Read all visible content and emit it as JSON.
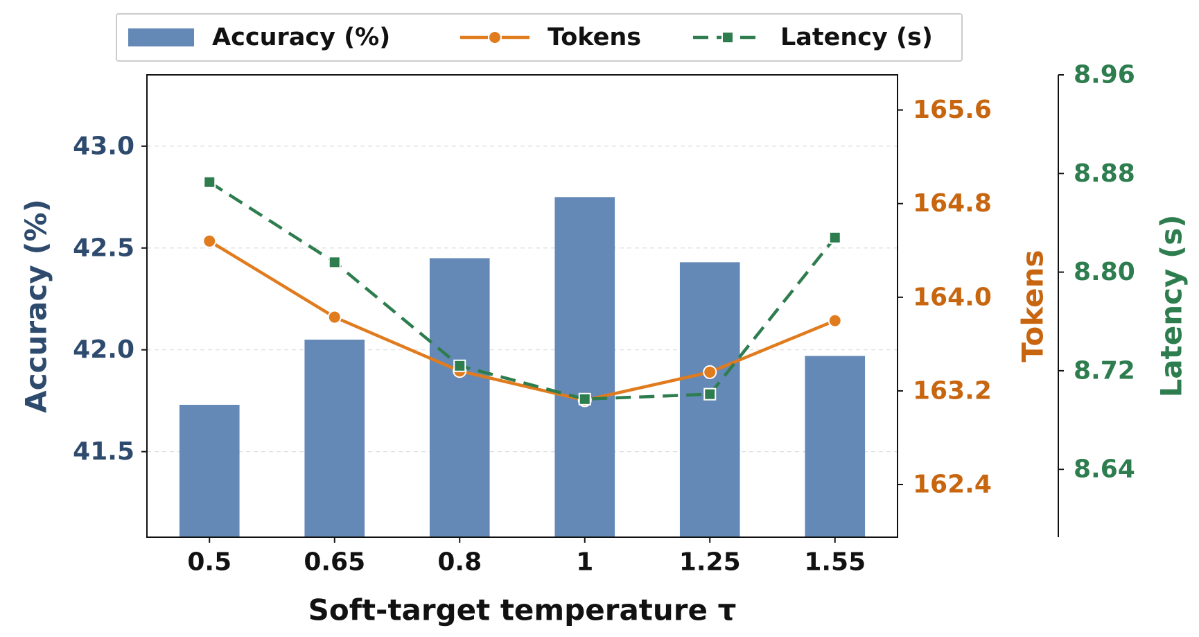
{
  "chart_data": {
    "type": "bar",
    "xlabel": "Soft-target temperature τ",
    "categories": [
      "0.5",
      "0.65",
      "0.8",
      "1",
      "1.25",
      "1.55"
    ],
    "legend_position": "top",
    "grid": "horizontal dashed",
    "colors": {
      "accuracy": "#6589b6",
      "accuracy_axis": "#2e4b6e",
      "tokens": "#e07b1e",
      "tokens_axis": "#c8650f",
      "latency": "#2e7d4f",
      "latency_axis": "#2e7d4f"
    },
    "series": [
      {
        "name": "Accuracy (%)",
        "type": "bar",
        "axis": "left",
        "ylabel": "Accuracy (%)",
        "ylim": [
          41.08,
          43.35
        ],
        "ticks": [
          41.5,
          42.0,
          42.5,
          43.0
        ],
        "tick_labels": [
          "41.5",
          "42.0",
          "42.5",
          "43.0"
        ],
        "values": [
          41.73,
          42.05,
          42.45,
          42.75,
          42.43,
          41.97
        ]
      },
      {
        "name": "Tokens",
        "type": "line",
        "marker": "circle",
        "axis": "right",
        "ylabel": "Tokens",
        "ylim": [
          161.95,
          165.9
        ],
        "ticks": [
          162.4,
          163.2,
          164.0,
          164.8,
          165.6
        ],
        "tick_labels": [
          "162.4",
          "163.2",
          "164.0",
          "164.8",
          "165.6"
        ],
        "values": [
          164.48,
          163.83,
          163.37,
          163.12,
          163.36,
          163.8
        ]
      },
      {
        "name": "Latency (s)",
        "type": "line",
        "linestyle": "dashed",
        "marker": "square",
        "axis": "right-outer",
        "ylabel": "Latency (s)",
        "ylim": [
          8.585,
          8.96
        ],
        "ticks": [
          8.64,
          8.72,
          8.8,
          8.88,
          8.96
        ],
        "tick_labels": [
          "8.64",
          "8.72",
          "8.80",
          "8.88",
          "8.96"
        ],
        "values": [
          8.873,
          8.808,
          8.724,
          8.697,
          8.701,
          8.828
        ]
      }
    ]
  }
}
